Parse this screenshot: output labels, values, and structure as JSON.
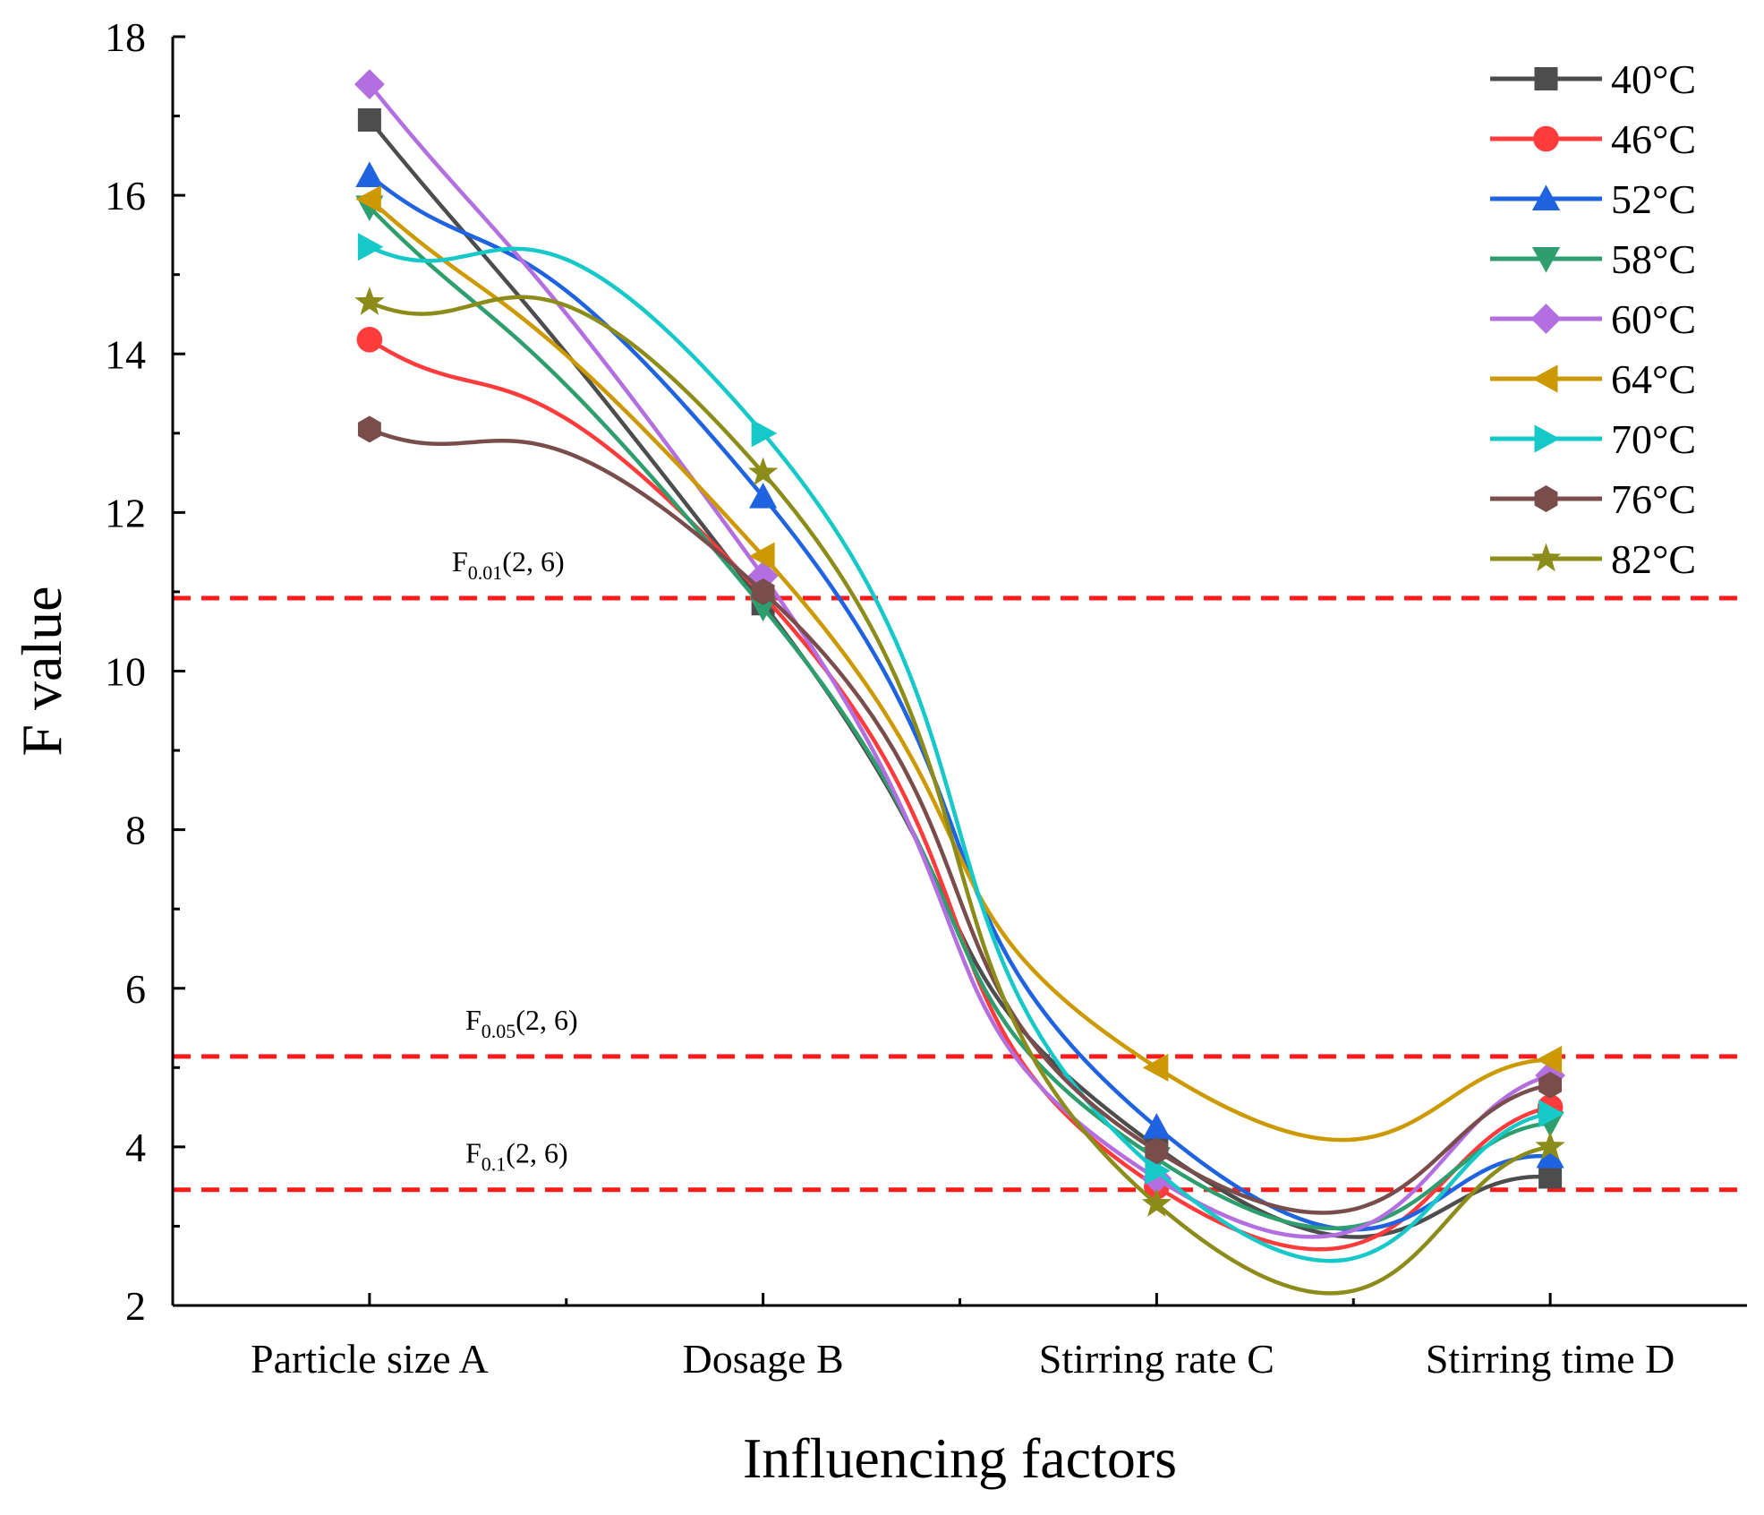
{
  "chart_data": {
    "type": "line",
    "title": "",
    "xlabel": "Influencing factors",
    "ylabel": "F value",
    "categories": [
      "Particle size A",
      "Dosage B",
      "Stirring rate C",
      "Stirring time D"
    ],
    "ylim": [
      2,
      18
    ],
    "yticks": [
      2,
      4,
      6,
      8,
      10,
      12,
      14,
      16,
      18
    ],
    "grid": false,
    "legend_position": "top-right",
    "series": [
      {
        "name": "40°C",
        "color": "#4d4d4d",
        "marker": "square",
        "values": [
          16.95,
          10.85,
          4.0,
          3.62
        ]
      },
      {
        "name": "46°C",
        "color": "#ff3b3b",
        "marker": "circle",
        "values": [
          14.18,
          10.95,
          3.5,
          4.5
        ]
      },
      {
        "name": "52°C",
        "color": "#1f63e0",
        "marker": "triangle-up",
        "values": [
          16.25,
          12.2,
          4.25,
          3.88
        ]
      },
      {
        "name": "58°C",
        "color": "#2e9e6e",
        "marker": "triangle-down",
        "values": [
          15.85,
          10.8,
          3.85,
          4.3
        ]
      },
      {
        "name": "60°C",
        "color": "#b36ee0",
        "marker": "diamond",
        "values": [
          17.4,
          11.2,
          3.6,
          4.9
        ]
      },
      {
        "name": "64°C",
        "color": "#cc9900",
        "marker": "triangle-left",
        "values": [
          15.95,
          11.45,
          5.0,
          5.1
        ]
      },
      {
        "name": "70°C",
        "color": "#17c8c8",
        "marker": "triangle-right",
        "values": [
          15.35,
          13.0,
          3.7,
          4.42
        ]
      },
      {
        "name": "76°C",
        "color": "#7a4d4d",
        "marker": "hexagon",
        "values": [
          13.05,
          11.0,
          3.95,
          4.78
        ]
      },
      {
        "name": "82°C",
        "color": "#8c8c1a",
        "marker": "star",
        "values": [
          14.65,
          12.5,
          3.28,
          4.0
        ]
      }
    ],
    "reference_lines": [
      {
        "label": "F",
        "sub": "0.01",
        "suffix": "(2, 6)",
        "value": 10.92
      },
      {
        "label": "F",
        "sub": "0.05",
        "suffix": "(2, 6)",
        "value": 5.14
      },
      {
        "label": "F",
        "sub": "0.1",
        "suffix": "(2, 6)",
        "value": 3.46
      }
    ]
  }
}
